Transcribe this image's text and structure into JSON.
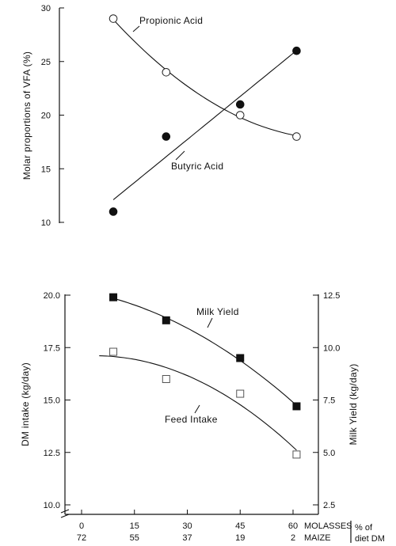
{
  "chart_data": [
    {
      "type": "scatter",
      "title": "",
      "xlabel": "",
      "ylabel": "Molar proportions of VFA (%)",
      "ylim": [
        10,
        30
      ],
      "yticks": [
        "10",
        "15",
        "20",
        "25",
        "30"
      ],
      "grid": false,
      "series": [
        {
          "name": "Propionic Acid",
          "marker": "open-circle",
          "points": [
            [
              9,
              29
            ],
            [
              24,
              24
            ],
            [
              45,
              20
            ],
            [
              61,
              18
            ]
          ],
          "fit": "curve"
        },
        {
          "name": "Butyric Acid",
          "marker": "filled-circle",
          "points": [
            [
              9,
              11
            ],
            [
              24,
              18
            ],
            [
              45,
              21
            ],
            [
              61,
              26
            ]
          ],
          "fit": "line"
        }
      ]
    },
    {
      "type": "scatter",
      "title": "",
      "xlabel": "",
      "ylabel": "DM intake (kg/day)",
      "ylabel_right": "Milk Yield (kg/day)",
      "ylim": [
        10,
        20
      ],
      "ylim_right": [
        2.5,
        12.5
      ],
      "yticks": [
        "10.0",
        "12.5",
        "15.0",
        "17.5",
        "20.0"
      ],
      "yticks_right": [
        "2.5",
        "5.0",
        "7.5",
        "10.0",
        "12.5"
      ],
      "xlim": [
        -5,
        65
      ],
      "xticks_molasses": [
        "0",
        "15",
        "30",
        "45",
        "60"
      ],
      "xticks_maize": [
        "72",
        "55",
        "37",
        "19",
        "2"
      ],
      "xtick_positions": [
        0,
        15,
        30,
        45,
        60
      ],
      "x_row_labels": [
        "MOLASSES",
        "MAIZE"
      ],
      "x_unit_label": [
        "% of",
        "diet DM"
      ],
      "grid": false,
      "series": [
        {
          "name": "Milk Yield",
          "marker": "filled-square",
          "axis": "right",
          "points": [
            [
              9,
              12.4
            ],
            [
              24,
              11.3
            ],
            [
              45,
              9.5
            ],
            [
              61,
              7.2
            ]
          ],
          "fit": "curve"
        },
        {
          "name": "Feed Intake",
          "marker": "open-square",
          "axis": "left",
          "points": [
            [
              9,
              17.3
            ],
            [
              24,
              16.0
            ],
            [
              45,
              15.3
            ],
            [
              61,
              12.4
            ]
          ],
          "fit": "curve"
        }
      ]
    }
  ]
}
